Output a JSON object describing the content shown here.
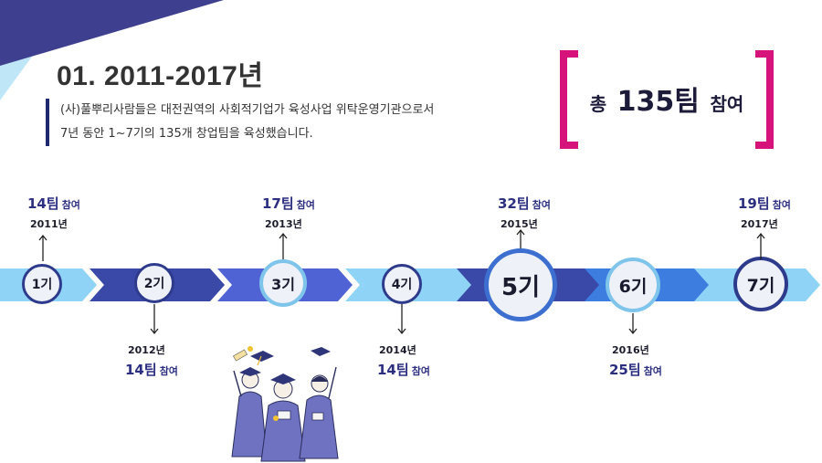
{
  "colors": {
    "navy": "#1f2a6e",
    "corner_purple": "#3f3f8f",
    "corner_light": "#bfe6f7",
    "bracket_magenta": "#d6137a",
    "arrow_light": "#8fd3f7",
    "arrow_navy": "#3a48a8",
    "arrow_mid": "#4f63d4",
    "arrow_blue": "#3d7de0",
    "count_text": "#2c2f80"
  },
  "section": {
    "title": "01. 2011-2017년"
  },
  "description": {
    "line1": "(사)풀뿌리사람들은 대전권역의 사회적기업가 육성사업 위탁운영기관으로서",
    "line2": "7년 동안 1~7기의 135개 창업팀을 육성했습니다."
  },
  "total": {
    "prefix": "총",
    "number": "135팀",
    "suffix": "참여"
  },
  "timeline": [
    {
      "label": "1기",
      "year": "2011년",
      "count": "14팀",
      "suffix": "참여",
      "position": "top"
    },
    {
      "label": "2기",
      "year": "2012년",
      "count": "14팀",
      "suffix": "참여",
      "position": "bottom"
    },
    {
      "label": "3기",
      "year": "2013년",
      "count": "17팀",
      "suffix": "참여",
      "position": "top"
    },
    {
      "label": "4기",
      "year": "2014년",
      "count": "14팀",
      "suffix": "참여",
      "position": "bottom"
    },
    {
      "label": "5기",
      "year": "2015년",
      "count": "32팀",
      "suffix": "참여",
      "position": "top"
    },
    {
      "label": "6기",
      "year": "2016년",
      "count": "25팀",
      "suffix": "참여",
      "position": "bottom"
    },
    {
      "label": "7기",
      "year": "2017년",
      "count": "19팀",
      "suffix": "참여",
      "position": "top"
    }
  ],
  "illustration": {
    "icon": "graduates-celebrating-illustration"
  }
}
